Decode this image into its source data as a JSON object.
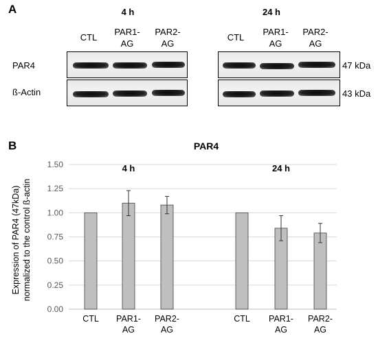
{
  "panel_a": {
    "letter": "A",
    "groups": [
      {
        "time": "4 h",
        "lanes": [
          [
            "CTL"
          ],
          [
            "PAR1-",
            "AG"
          ],
          [
            "PAR2-",
            "AG"
          ]
        ]
      },
      {
        "time": "24 h",
        "lanes": [
          [
            "CTL"
          ],
          [
            "PAR1-",
            "AG"
          ],
          [
            "PAR2-",
            "AG"
          ]
        ]
      }
    ],
    "rows": [
      {
        "label": "PAR4",
        "kda": "47 kDa"
      },
      {
        "label": "ß-Actin",
        "kda": "43 kDa"
      }
    ]
  },
  "panel_b": {
    "letter": "B"
  },
  "chart_data": {
    "type": "bar",
    "title": "PAR4",
    "ylabel_lines": [
      "Expression of PAR4 (47kDa)",
      "normalized to the control ß-actin"
    ],
    "ylim": [
      0,
      1.5
    ],
    "yticks": [
      "0.00",
      "0.25",
      "0.50",
      "0.75",
      "1.00",
      "1.25",
      "1.50"
    ],
    "grid": true,
    "bar_color": "#bfbfbf",
    "groups": [
      {
        "label": "4 h",
        "bars": [
          {
            "category": [
              "CTL"
            ],
            "value": 1.0,
            "error": 0
          },
          {
            "category": [
              "PAR1-",
              "AG"
            ],
            "value": 1.1,
            "error": 0.13
          },
          {
            "category": [
              "PAR2-",
              "AG"
            ],
            "value": 1.08,
            "error": 0.09
          }
        ]
      },
      {
        "label": "24 h",
        "bars": [
          {
            "category": [
              "CTL"
            ],
            "value": 1.0,
            "error": 0
          },
          {
            "category": [
              "PAR1-",
              "AG"
            ],
            "value": 0.84,
            "error": 0.13
          },
          {
            "category": [
              "PAR2-",
              "AG"
            ],
            "value": 0.79,
            "error": 0.1
          }
        ]
      }
    ]
  }
}
